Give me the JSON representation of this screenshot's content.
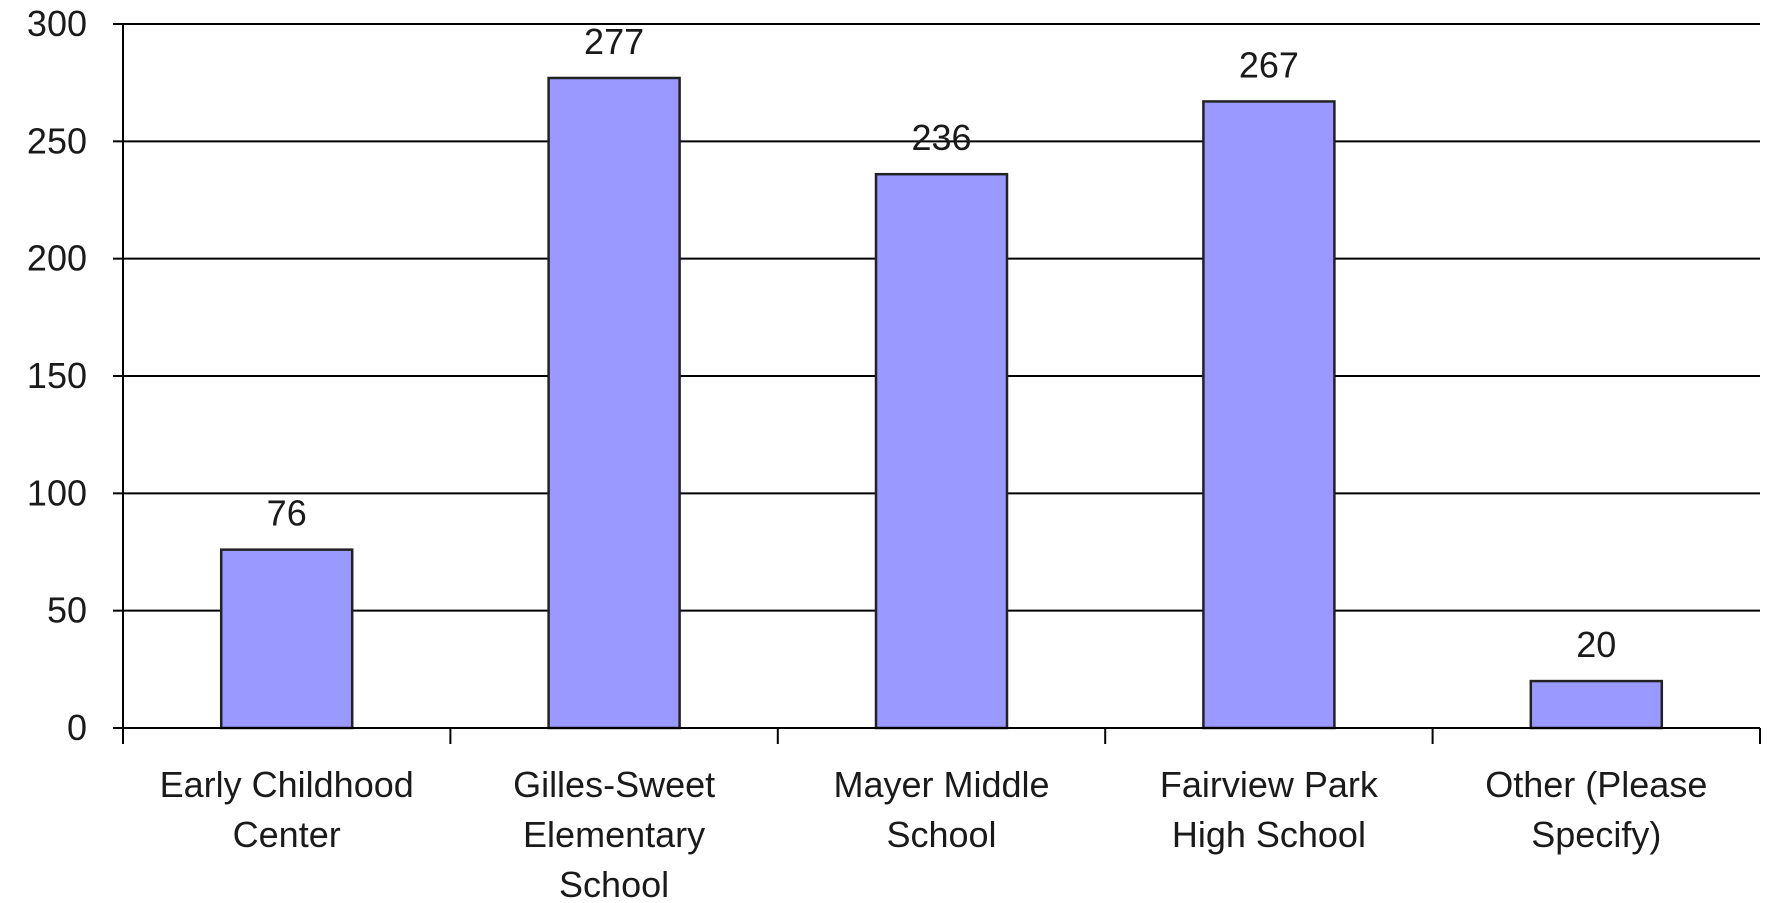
{
  "chart_data": {
    "type": "bar",
    "categories": [
      [
        "Early Childhood",
        "Center"
      ],
      [
        "Gilles-Sweet",
        "Elementary",
        "School"
      ],
      [
        "Mayer Middle",
        "School"
      ],
      [
        "Fairview Park",
        "High School"
      ],
      [
        "Other (Please",
        "Specify)"
      ]
    ],
    "values": [
      76,
      277,
      236,
      267,
      20
    ],
    "data_labels": [
      "76",
      "277",
      "236",
      "267",
      "20"
    ],
    "title": "",
    "xlabel": "",
    "ylabel": "",
    "ylim": [
      0,
      300
    ],
    "yticks": [
      0,
      50,
      100,
      150,
      200,
      250,
      300
    ],
    "ytick_labels": [
      "0",
      "50",
      "100",
      "150",
      "200",
      "250",
      "300"
    ],
    "grid": true,
    "legend": "none",
    "colors": {
      "bar_fill": "#9999ff",
      "bar_stroke": "#222222",
      "grid": "#000000",
      "axis": "#000000"
    }
  }
}
